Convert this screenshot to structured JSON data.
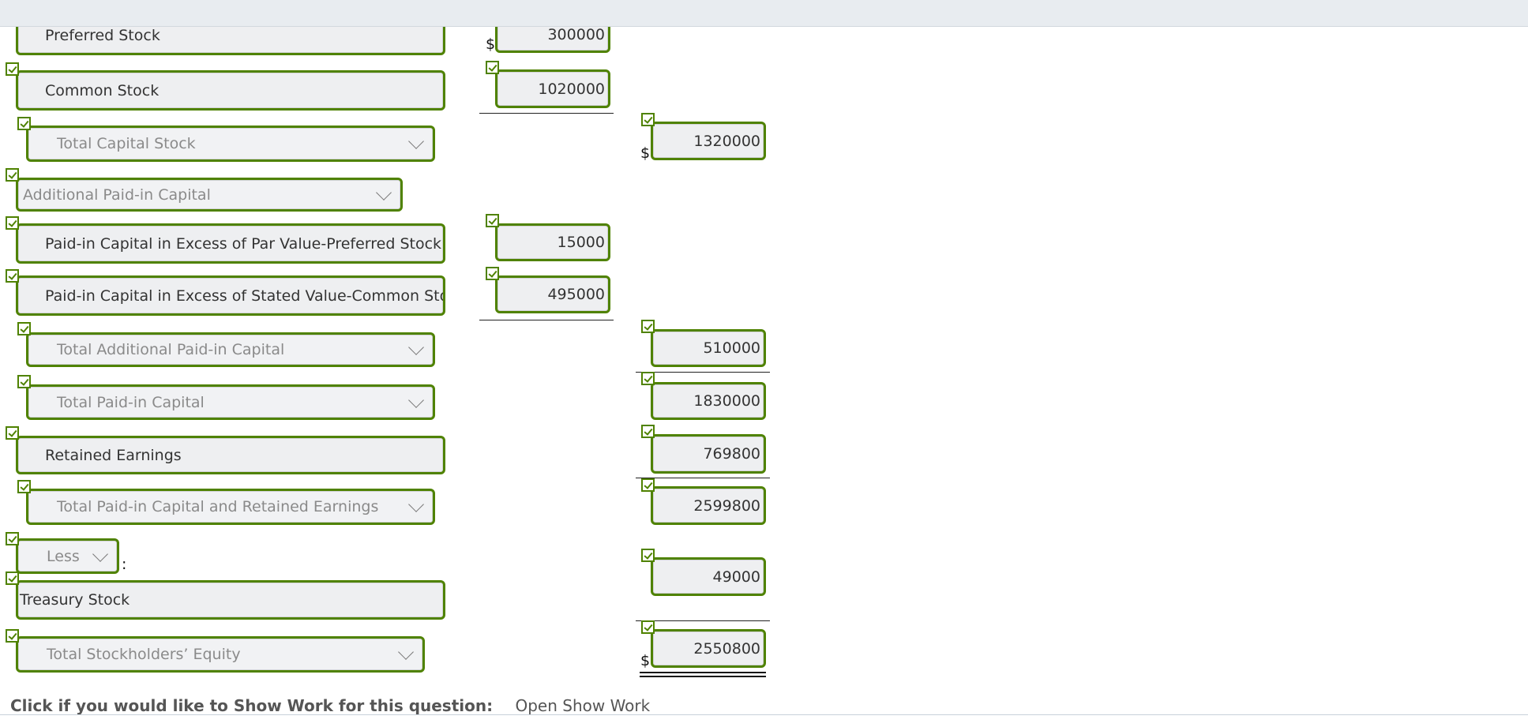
{
  "rows": [
    {
      "label": "Preferred Stock",
      "kind": "input",
      "value": "300000",
      "dollar": true
    },
    {
      "label": "Common Stock",
      "kind": "input",
      "value": "1020000"
    },
    {
      "label": "Total Capital Stock",
      "kind": "dropdown",
      "value": "1320000",
      "dollar": true
    },
    {
      "label": "Additional Paid-in Capital",
      "kind": "dropdown"
    },
    {
      "label": "Paid-in Capital in Excess of Par Value-Preferred Stock",
      "kind": "input",
      "value": "15000"
    },
    {
      "label": "Paid-in Capital in Excess of Stated Value-Common Stock",
      "kind": "input",
      "value": "495000"
    },
    {
      "label": "Total Additional Paid-in Capital",
      "kind": "dropdown",
      "value": "510000"
    },
    {
      "label": "Total Paid-in Capital",
      "kind": "dropdown",
      "value": "1830000"
    },
    {
      "label": "Retained Earnings",
      "kind": "input",
      "value": "769800"
    },
    {
      "label": "Total Paid-in Capital and Retained Earnings",
      "kind": "dropdown",
      "value": "2599800"
    },
    {
      "label": "Less",
      "kind": "dropdown",
      "suffix": ":"
    },
    {
      "label": "Treasury Stock",
      "kind": "input",
      "value": "49000"
    },
    {
      "label": "Total Stockholders’ Equity",
      "kind": "dropdown",
      "value": "2550800",
      "dollar": true
    }
  ],
  "currency_symbol": "$",
  "footer": {
    "prompt": "Click if you would like to Show Work for this question:",
    "link": "Open Show Work"
  },
  "colors": {
    "correct_border": "#4f8200",
    "field_bg": "#eeeff1"
  },
  "icons": {
    "correct": "check-icon",
    "dropdown": "chevron-down-icon"
  }
}
